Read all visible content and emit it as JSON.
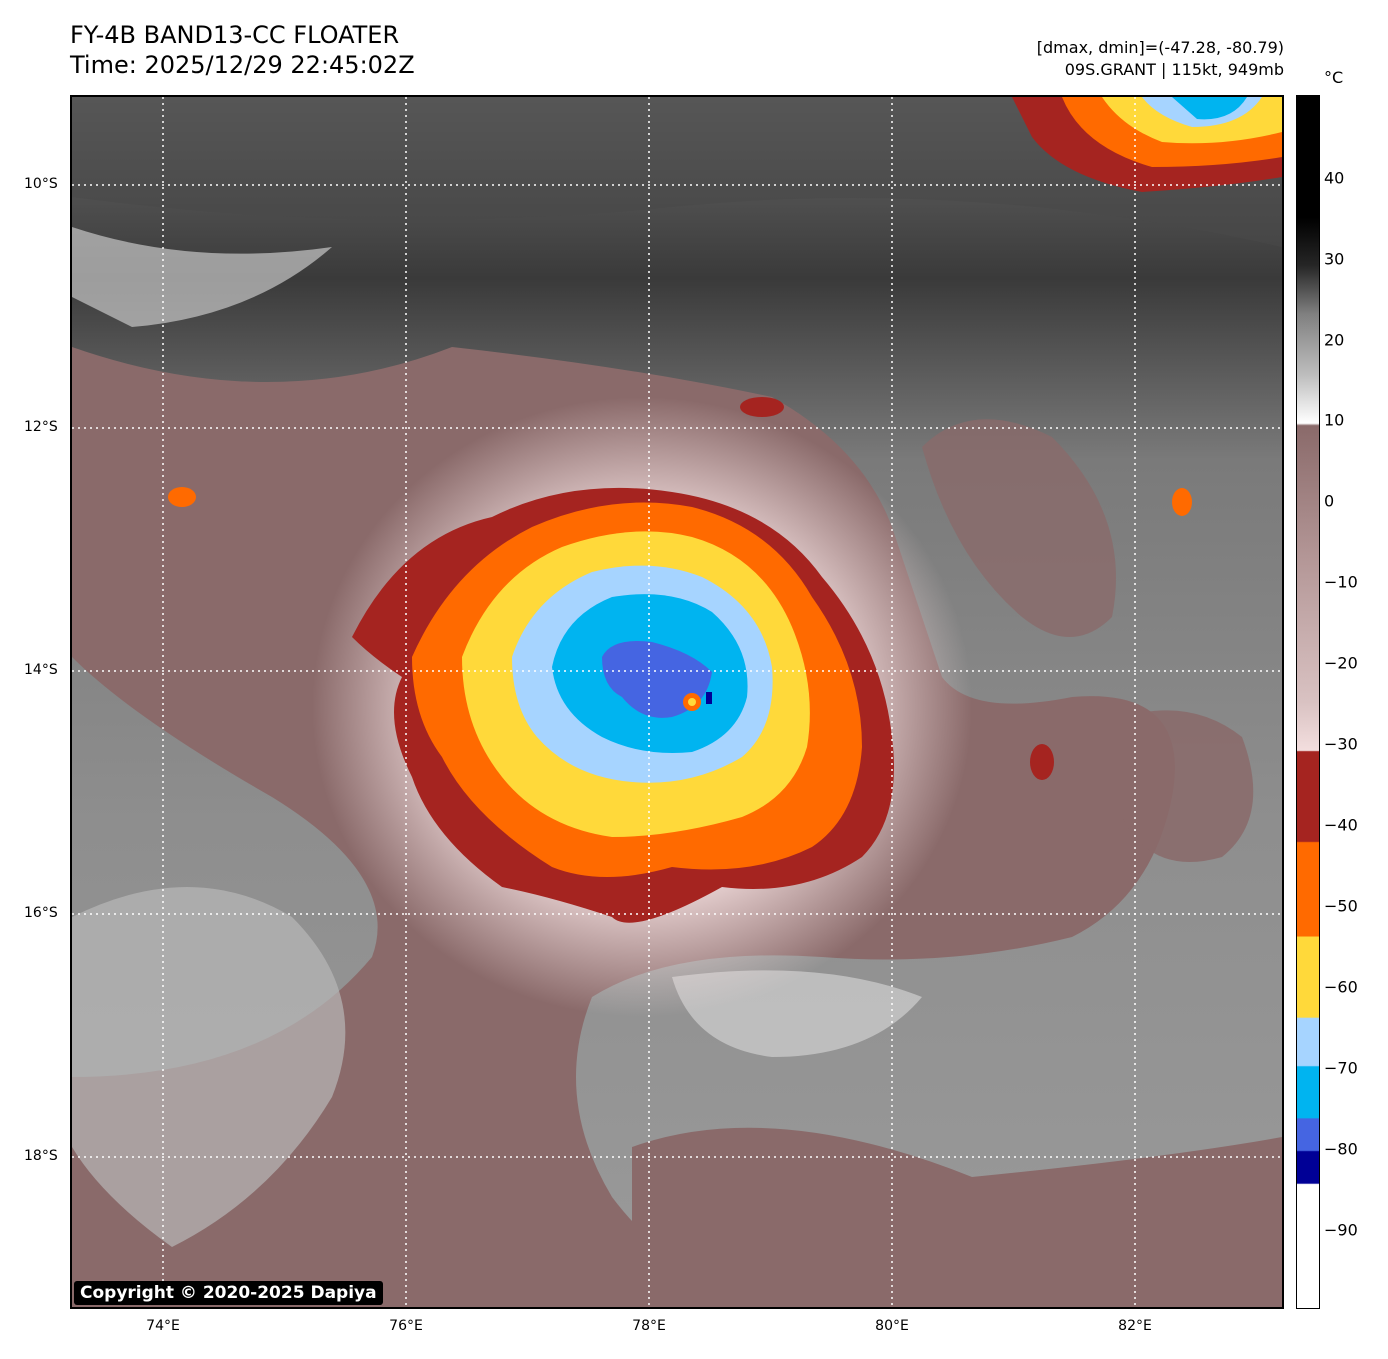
{
  "header": {
    "title_line1": "FY-4B BAND13-CC FLOATER",
    "title_line2": "Time: 2025/12/29 22:45:02Z",
    "dmax_dmin": "[dmax, dmin]=(-47.28, -80.79)",
    "storm_info": "09S.GRANT | 115kt, 949mb"
  },
  "map": {
    "lat_labels": [
      "10°S",
      "12°S",
      "14°S",
      "16°S",
      "18°S"
    ],
    "lon_labels": [
      "74°E",
      "76°E",
      "78°E",
      "80°E",
      "82°E"
    ],
    "copyright": "Copyright © 2020-2025 Dapiya"
  },
  "colorbar": {
    "unit": "°C",
    "ticks": [
      "40",
      "30",
      "20",
      "10",
      "0",
      "−10",
      "−20",
      "−30",
      "−40",
      "−50",
      "−60",
      "−70",
      "−80",
      "−90"
    ],
    "colors": {
      "warm_black": "#000000",
      "gray": "#808080",
      "brown": "#8a6a6a",
      "pink": "#f3dede",
      "dark_red": "#a52420",
      "orange": "#ff6a00",
      "yellow": "#ffd93a",
      "light_blue": "#a6d4ff",
      "cyan": "#00b4f0",
      "royal_blue": "#4565e2",
      "navy": "#000096",
      "white": "#ffffff"
    }
  }
}
